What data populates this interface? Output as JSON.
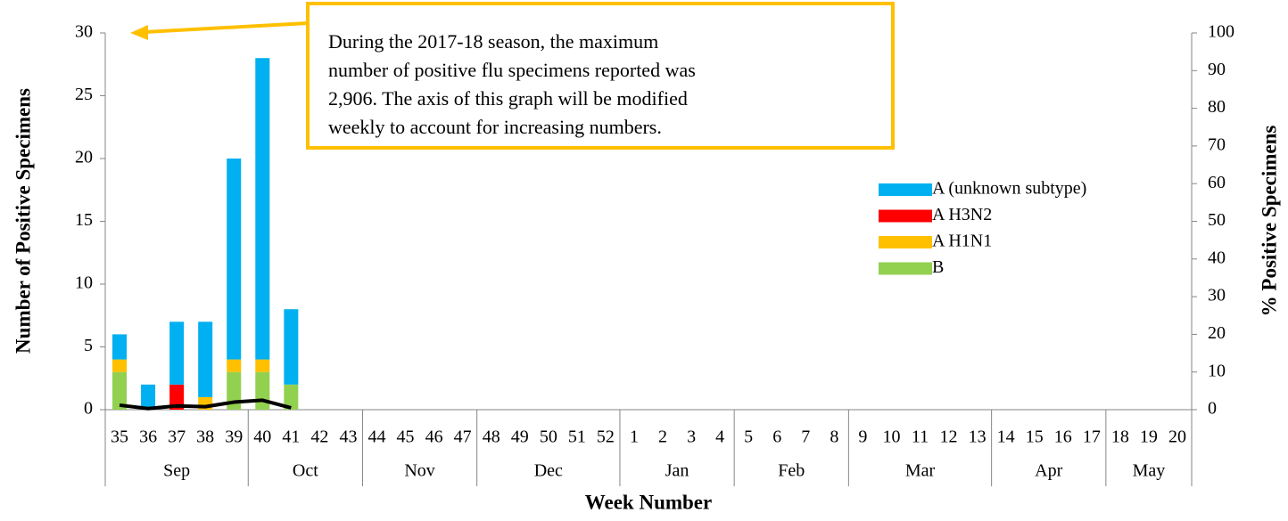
{
  "chart_data": {
    "type": "stacked-bar-line",
    "y_label": "Number of Positive Specimens",
    "y2_label": "% Positive Specimens",
    "x_label": "Week Number",
    "annotation": [
      "During the 2017-18 season, the maximum",
      "number of positive flu specimens reported was",
      "2,906. The axis of this graph will be modified",
      "weekly to account for increasing numbers."
    ],
    "categories": [
      "35",
      "36",
      "37",
      "38",
      "39",
      "40",
      "41",
      "42",
      "43",
      "44",
      "45",
      "46",
      "47",
      "48",
      "49",
      "50",
      "51",
      "52",
      "1",
      "2",
      "3",
      "4",
      "5",
      "6",
      "7",
      "8",
      "9",
      "10",
      "11",
      "12",
      "13",
      "14",
      "15",
      "16",
      "17",
      "18",
      "19",
      "20"
    ],
    "month_groups": [
      {
        "label": "Sep",
        "span": 5
      },
      {
        "label": "Oct",
        "span": 4
      },
      {
        "label": "Nov",
        "span": 4
      },
      {
        "label": "Dec",
        "span": 5
      },
      {
        "label": "Jan",
        "span": 4
      },
      {
        "label": "Feb",
        "span": 4
      },
      {
        "label": "Mar",
        "span": 5
      },
      {
        "label": "Apr",
        "span": 4
      },
      {
        "label": "May",
        "span": 3
      }
    ],
    "series": [
      {
        "name": "A (unknown subtype)",
        "color": "#00b0f0",
        "values": [
          2,
          2,
          5,
          6,
          16,
          24,
          6,
          null,
          null,
          null,
          null,
          null,
          null,
          null,
          null,
          null,
          null,
          null,
          null,
          null,
          null,
          null,
          null,
          null,
          null,
          null,
          null,
          null,
          null,
          null,
          null,
          null,
          null,
          null,
          null,
          null,
          null,
          null
        ]
      },
      {
        "name": "A H3N2",
        "color": "#ff0000",
        "values": [
          0,
          0,
          2,
          0,
          0,
          0,
          0,
          null,
          null,
          null,
          null,
          null,
          null,
          null,
          null,
          null,
          null,
          null,
          null,
          null,
          null,
          null,
          null,
          null,
          null,
          null,
          null,
          null,
          null,
          null,
          null,
          null,
          null,
          null,
          null,
          null,
          null,
          null
        ]
      },
      {
        "name": "A H1N1",
        "color": "#ffc000",
        "values": [
          1,
          0,
          0,
          1,
          1,
          1,
          0,
          null,
          null,
          null,
          null,
          null,
          null,
          null,
          null,
          null,
          null,
          null,
          null,
          null,
          null,
          null,
          null,
          null,
          null,
          null,
          null,
          null,
          null,
          null,
          null,
          null,
          null,
          null,
          null,
          null,
          null,
          null
        ]
      },
      {
        "name": "B",
        "color": "#92d050",
        "values": [
          3,
          0,
          0,
          0,
          3,
          3,
          2,
          null,
          null,
          null,
          null,
          null,
          null,
          null,
          null,
          null,
          null,
          null,
          null,
          null,
          null,
          null,
          null,
          null,
          null,
          null,
          null,
          null,
          null,
          null,
          null,
          null,
          null,
          null,
          null,
          null,
          null,
          null
        ]
      }
    ],
    "line": {
      "color": "#000000",
      "axis": "y2",
      "values": [
        1.2,
        0.3,
        1,
        0.8,
        2,
        2.5,
        0.5,
        null,
        null,
        null,
        null,
        null,
        null,
        null,
        null,
        null,
        null,
        null,
        null,
        null,
        null,
        null,
        null,
        null,
        null,
        null,
        null,
        null,
        null,
        null,
        null,
        null,
        null,
        null,
        null,
        null,
        null,
        null
      ]
    },
    "ylim": [
      0,
      30
    ],
    "yticks": [
      0,
      5,
      10,
      15,
      20,
      25,
      30
    ],
    "y2lim": [
      0,
      100
    ],
    "y2ticks": [
      0,
      10,
      20,
      30,
      40,
      50,
      60,
      70,
      80,
      90,
      100
    ],
    "legend": "right"
  }
}
